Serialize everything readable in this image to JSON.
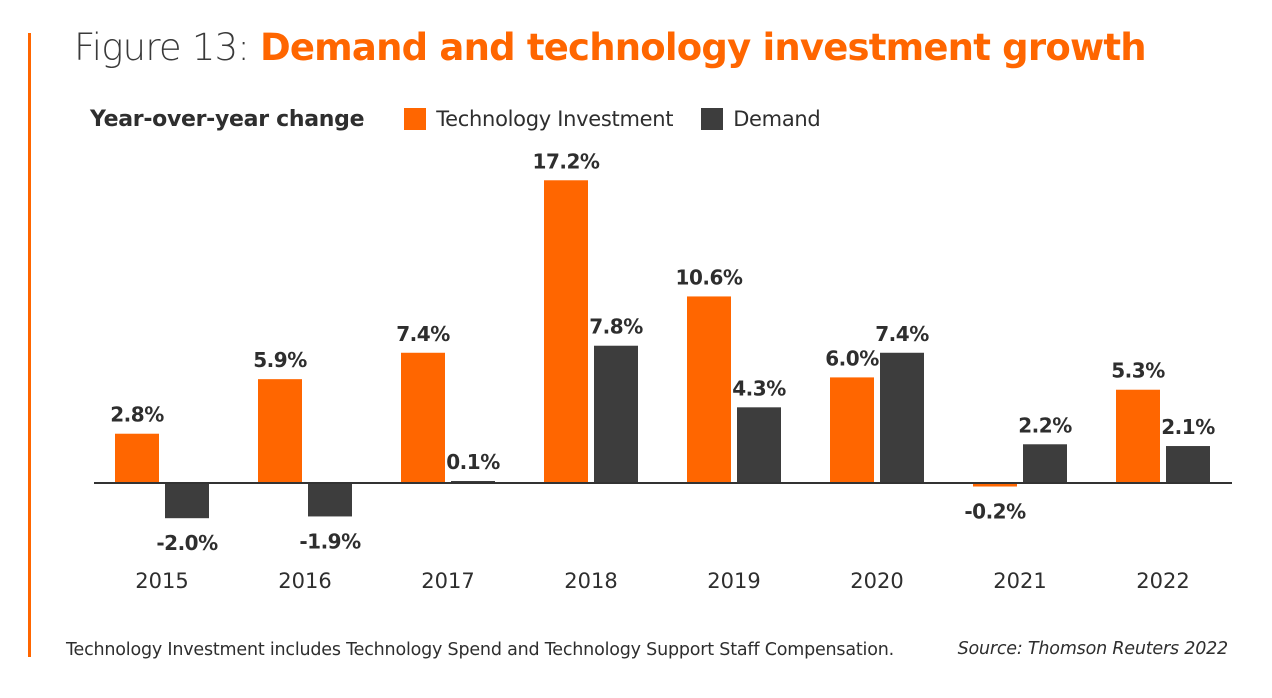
{
  "title": {
    "prefix": "Figure 13: ",
    "main": "Demand and technology investment growth"
  },
  "colors": {
    "accent": "#ff6600",
    "technology": "#ff6600",
    "demand": "#3d3d3d",
    "axis": "#333333",
    "text": "#2e2e2e"
  },
  "legend": {
    "subtitle": "Year-over-year change",
    "items": [
      {
        "label": "Technology Investment",
        "color": "#ff6600"
      },
      {
        "label": "Demand",
        "color": "#3d3d3d"
      }
    ]
  },
  "footnote": "Technology Investment includes Technology Spend and Technology Support Staff Compensation.",
  "source": "Source: Thomson Reuters 2022",
  "chart_data": {
    "type": "bar",
    "title": "Figure 13: Demand and technology investment growth",
    "subtitle": "Year-over-year change",
    "xlabel": "",
    "ylabel": "",
    "categories": [
      "2015",
      "2016",
      "2017",
      "2018",
      "2019",
      "2020",
      "2021",
      "2022"
    ],
    "series": [
      {
        "name": "Technology Investment",
        "color": "#ff6600",
        "values": [
          2.8,
          5.9,
          7.4,
          17.2,
          10.6,
          6.0,
          -0.2,
          5.3
        ],
        "labels": [
          "2.8%",
          "5.9%",
          "7.4%",
          "17.2%",
          "10.6%",
          "6.0%",
          "-0.2%",
          "5.3%"
        ]
      },
      {
        "name": "Demand",
        "color": "#3d3d3d",
        "values": [
          -2.0,
          -1.9,
          0.1,
          7.8,
          4.3,
          7.4,
          2.2,
          2.1
        ],
        "labels": [
          "-2.0%",
          "-1.9%",
          "0.1%",
          "7.8%",
          "4.3%",
          "7.4%",
          "2.2%",
          "2.1%"
        ]
      }
    ],
    "ylim": [
      -2.5,
      17.5
    ],
    "grid": false,
    "legend_position": "top-left",
    "value_format": "percent"
  }
}
